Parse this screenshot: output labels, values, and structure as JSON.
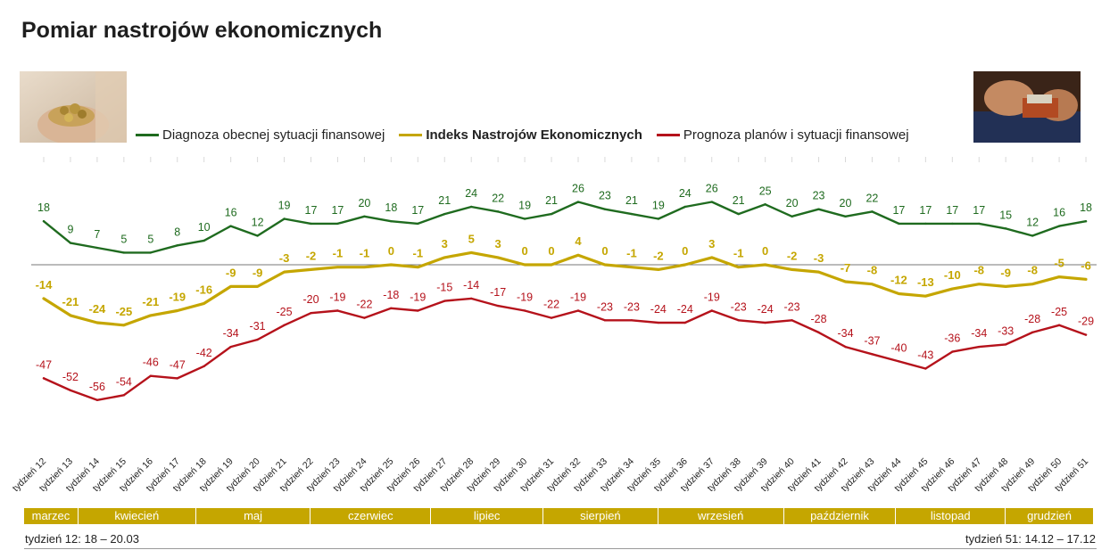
{
  "title": "Pomiar nastrojów ekonomicznych",
  "legend": [
    {
      "label": "Diagnoza obecnej sytuacji finansowej",
      "color": "#1f6b1f"
    },
    {
      "label": "Indeks Nastrojów Ekonomicznych",
      "color": "#c5a600"
    },
    {
      "label": "Prognoza planów i sytuacji finansowej",
      "color": "#b5121b"
    }
  ],
  "chart_data": {
    "type": "line",
    "title": "Pomiar nastrojów ekonomicznych",
    "xlabel": "",
    "ylabel": "",
    "ylim": [
      -60,
      30
    ],
    "grid": false,
    "legend_position": "top",
    "categories": [
      "tydzień 12",
      "tydzień 13",
      "tydzień 14",
      "tydzień 15",
      "tydzień 16",
      "tydzień 17",
      "tydzień 18",
      "tydzień 19",
      "tydzień 20",
      "tydzień 21",
      "tydzień 22",
      "tydzień 23",
      "tydzień 24",
      "tydzień 25",
      "tydzień 26",
      "tydzień 27",
      "tydzień 28",
      "tydzień 29",
      "tydzień 30",
      "tydzień 31",
      "tydzień 32",
      "tydzień 33",
      "tydzień 34",
      "tydzień 35",
      "tydzień 36",
      "tydzień 37",
      "tydzień 38",
      "tydzień 39",
      "tydzień 40",
      "tydzień 41",
      "tydzień 42",
      "tydzień 43",
      "tydzień 44",
      "tydzień 45",
      "tydzień 46",
      "tydzień 47",
      "tydzień 48",
      "tydzień 49",
      "tydzień 50",
      "tydzień 51"
    ],
    "series": [
      {
        "name": "Diagnoza obecnej sytuacji finansowej",
        "color": "#1f6b1f",
        "bold": false,
        "values": [
          18,
          9,
          7,
          5,
          5,
          8,
          10,
          16,
          12,
          19,
          17,
          17,
          20,
          18,
          17,
          21,
          24,
          22,
          19,
          21,
          26,
          23,
          21,
          19,
          24,
          26,
          21,
          25,
          20,
          23,
          20,
          22,
          17,
          17,
          17,
          17,
          15,
          12,
          16,
          18
        ]
      },
      {
        "name": "Indeks Nastrojów Ekonomicznych",
        "color": "#c5a600",
        "bold": true,
        "values": [
          -14,
          -21,
          -24,
          -25,
          -21,
          -19,
          -16,
          -9,
          -9,
          -3,
          -2,
          -1,
          -1,
          0,
          -1,
          3,
          5,
          3,
          0,
          0,
          4,
          0,
          -1,
          -2,
          0,
          3,
          -1,
          0,
          -2,
          -3,
          -7,
          -8,
          -12,
          -13,
          -10,
          -8,
          -9,
          -8,
          -5,
          -6
        ]
      },
      {
        "name": "Prognoza planów i sytuacji finansowej",
        "color": "#b5121b",
        "bold": false,
        "values": [
          -47,
          -52,
          -56,
          -54,
          -46,
          -47,
          -42,
          -34,
          -31,
          -25,
          -20,
          -19,
          -22,
          -18,
          -19,
          -15,
          -14,
          -17,
          -19,
          -22,
          -19,
          -23,
          -23,
          -24,
          -24,
          -19,
          -23,
          -24,
          -23,
          -28,
          -34,
          -37,
          -40,
          -43,
          -36,
          -34,
          -33,
          -28,
          -25,
          -29
        ]
      }
    ]
  },
  "months": [
    {
      "label": "marzec",
      "start": 0,
      "end": 2
    },
    {
      "label": "kwiecień",
      "start": 2,
      "end": 6.4
    },
    {
      "label": "maj",
      "start": 6.4,
      "end": 10.7
    },
    {
      "label": "czerwiec",
      "start": 10.7,
      "end": 15.2
    },
    {
      "label": "lipiec",
      "start": 15.2,
      "end": 19.4
    },
    {
      "label": "sierpień",
      "start": 19.4,
      "end": 23.7
    },
    {
      "label": "wrzesień",
      "start": 23.7,
      "end": 28.4
    },
    {
      "label": "październik",
      "start": 28.4,
      "end": 32.6
    },
    {
      "label": "listopad",
      "start": 32.6,
      "end": 36.7
    },
    {
      "label": "grudzień",
      "start": 36.7,
      "end": 40
    }
  ],
  "notes": {
    "left": "tydzień 12: 18 – 20.03",
    "right": "tydzień 51: 14.12 – 17.12"
  }
}
